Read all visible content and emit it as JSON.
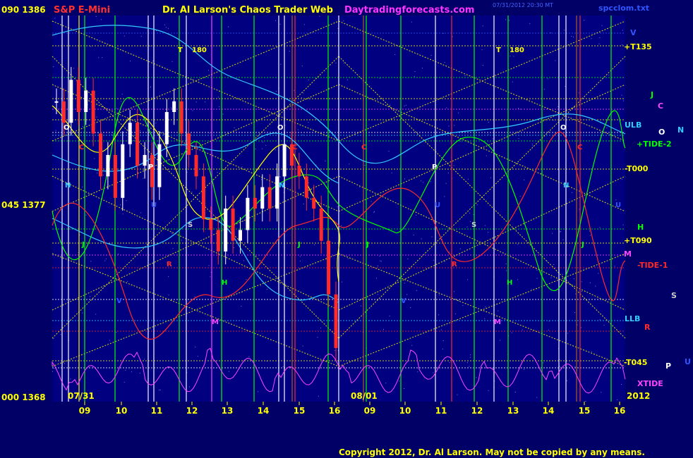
{
  "header": {
    "left_scale": "090  1386",
    "title": "S&P E-Mini",
    "author": "Dr. Al Larson's Chaos Trader Web",
    "site": "Daytradingforecasts.com",
    "timestamp": "07/31/2012 20:30 MT",
    "file": "spcclom.txt"
  },
  "footer": {
    "copyright": "Copyright 2012, Dr. Al Larson. May not be copied by any means."
  },
  "colors": {
    "background": "#000066",
    "plot_bg": "#000080",
    "yellow": "#ffff00",
    "green": "#00ff00",
    "cyan": "#33ccff",
    "red": "#ff2a2a",
    "magenta": "#ff44ff",
    "white": "#ffffff",
    "blue": "#3355ff",
    "brown": "#b06020",
    "title_red": "#ff3030",
    "site_magenta": "#ff33ff"
  },
  "chart_data": {
    "type": "line",
    "title": "S&P E-Mini",
    "y_axis_labels": [
      {
        "label": "090  1386",
        "value": 1386
      },
      {
        "label": "045  1377",
        "value": 1377
      },
      {
        "label": "000  1368",
        "value": 1368
      }
    ],
    "ylim": [
      1368,
      1386
    ],
    "x_ticks": [
      "09",
      "10",
      "11",
      "12",
      "13",
      "14",
      "15",
      "16",
      "09",
      "10",
      "11",
      "12",
      "13",
      "14",
      "15",
      "16"
    ],
    "date_labels": [
      "07/31",
      "08/01"
    ],
    "year_label": "2012",
    "right_labels": [
      {
        "text": "V",
        "color": "#3355ff"
      },
      {
        "text": "+T135",
        "color": "#ffff00"
      },
      {
        "text": "J",
        "color": "#00ff00"
      },
      {
        "text": "C",
        "color": "#ff44ff"
      },
      {
        "text": "ULB",
        "color": "#33ccff"
      },
      {
        "text": "O",
        "color": "#ffffff"
      },
      {
        "text": "N",
        "color": "#33ccff"
      },
      {
        "text": "+TIDE-2",
        "color": "#00ff00"
      },
      {
        "text": "-T000",
        "color": "#ffff00"
      },
      {
        "text": "H",
        "color": "#00ff00"
      },
      {
        "text": "+T090",
        "color": "#ffff00"
      },
      {
        "text": "M",
        "color": "#ff44ff"
      },
      {
        "text": "-TIDE-1",
        "color": "#ff2a2a"
      },
      {
        "text": "S",
        "color": "#cccccc"
      },
      {
        "text": "LLB",
        "color": "#33ccff"
      },
      {
        "text": "R",
        "color": "#ff2a2a"
      },
      {
        "text": "-T045",
        "color": "#ffff00"
      },
      {
        "text": "P",
        "color": "#ffffff"
      },
      {
        "text": "U",
        "color": "#3355ff"
      },
      {
        "text": "XTIDE",
        "color": "#ff44ff"
      }
    ],
    "plot_markers": [
      {
        "text": "T",
        "color": "#ffff00"
      },
      {
        "text": "180",
        "color": "#ffff00"
      },
      {
        "text": "T",
        "color": "#ffff00"
      },
      {
        "text": "180",
        "color": "#ffff00"
      },
      {
        "text": "O",
        "color": "#ffffff"
      },
      {
        "text": "O",
        "color": "#ffffff"
      },
      {
        "text": "O",
        "color": "#ffffff"
      },
      {
        "text": "C",
        "color": "#ff2a2a"
      },
      {
        "text": "C",
        "color": "#ff2a2a"
      },
      {
        "text": "C",
        "color": "#ff2a2a"
      },
      {
        "text": "C",
        "color": "#ff2a2a"
      },
      {
        "text": "P",
        "color": "#ffffff"
      },
      {
        "text": "P",
        "color": "#ffffff"
      },
      {
        "text": "N",
        "color": "#33ccff"
      },
      {
        "text": "N",
        "color": "#33ccff"
      },
      {
        "text": "N",
        "color": "#33ccff"
      },
      {
        "text": "U",
        "color": "#3355ff"
      },
      {
        "text": "U",
        "color": "#3355ff"
      },
      {
        "text": "U",
        "color": "#3355ff"
      },
      {
        "text": "S",
        "color": "#cccccc"
      },
      {
        "text": "S",
        "color": "#cccccc"
      },
      {
        "text": "J",
        "color": "#00ff00"
      },
      {
        "text": "J",
        "color": "#00ff00"
      },
      {
        "text": "J",
        "color": "#00ff00"
      },
      {
        "text": "J",
        "color": "#00ff00"
      },
      {
        "text": "R",
        "color": "#ff2a2a"
      },
      {
        "text": "R",
        "color": "#ff2a2a"
      },
      {
        "text": "H",
        "color": "#00ff00"
      },
      {
        "text": "H",
        "color": "#00ff00"
      },
      {
        "text": "M",
        "color": "#ff44ff"
      },
      {
        "text": "M",
        "color": "#ff44ff"
      },
      {
        "text": "V",
        "color": "#3355ff"
      },
      {
        "text": "V",
        "color": "#3355ff"
      }
    ],
    "price_series": [
      1382.0,
      1381.0,
      1383.0,
      1381.5,
      1382.5,
      1380.5,
      1378.5,
      1379.5,
      1377.5,
      1380.0,
      1381.0,
      1379.0,
      1379.5,
      1378.0,
      1380.0,
      1381.5,
      1382.0,
      1380.5,
      1379.5,
      1378.5,
      1376.5,
      1376.0,
      1375.0,
      1377.0,
      1375.5,
      1376.0,
      1377.5,
      1377.0,
      1378.0,
      1377.0,
      1378.5,
      1380.0,
      1379.0,
      1378.5,
      1377.5,
      1377.0,
      1375.5,
      1373.0,
      1370.5
    ]
  }
}
